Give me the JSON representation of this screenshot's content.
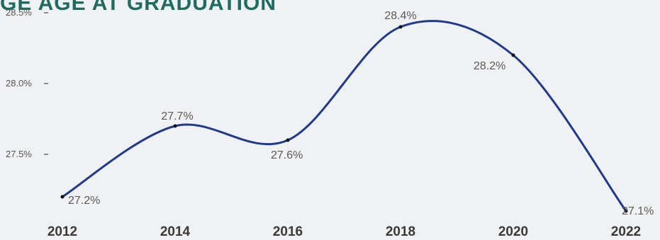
{
  "title_text": "GE AGE AT GRADUATION",
  "colors": {
    "line": "#1f3a8a",
    "title": "#1f6b62"
  },
  "chart_data": {
    "type": "line",
    "title": "",
    "xlabel": "",
    "ylabel": "",
    "x": [
      "2012",
      "2014",
      "2016",
      "2018",
      "2020",
      "2022"
    ],
    "series": [
      {
        "values": [
          27.2,
          27.7,
          27.6,
          28.4,
          28.2,
          27.1
        ]
      }
    ],
    "data_labels": [
      "27.2%",
      "27.7%",
      "27.6%",
      "28.4%",
      "28.2%",
      "27.1%"
    ],
    "yticks": [
      "27.5%",
      "28.0%",
      "28.5%"
    ],
    "ytick_values": [
      27.5,
      28.0,
      28.5
    ],
    "ylim": [
      27.1,
      28.5
    ],
    "grid": false,
    "smooth": true
  }
}
